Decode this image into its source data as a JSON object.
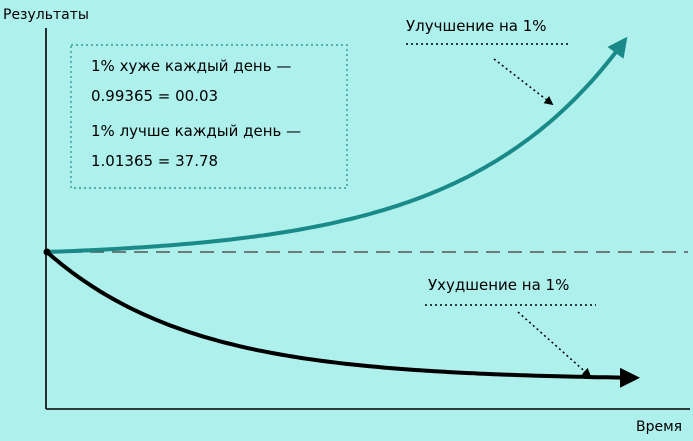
{
  "chart_data": {
    "type": "line",
    "ylabel": "Результаты",
    "xlabel": "Время",
    "baseline": {
      "style": "dashed",
      "value": 1
    },
    "info_box": {
      "lines": [
        "1% хуже каждый день —",
        "0.99365 = 00.03",
        "1% лучше каждый день —",
        "1.01365  = 37.78"
      ]
    },
    "x_domain": [
      0,
      365
    ],
    "series": [
      {
        "name": "Улучшение на 1%",
        "color": "#1a8a88",
        "rate": 1.01,
        "x": [
          0,
          365
        ],
        "y": [
          1,
          37.78
        ]
      },
      {
        "name": "Ухудшение на 1%",
        "color": "#000000",
        "rate": 0.99,
        "x": [
          0,
          365
        ],
        "y": [
          1,
          0.03
        ]
      }
    ]
  }
}
